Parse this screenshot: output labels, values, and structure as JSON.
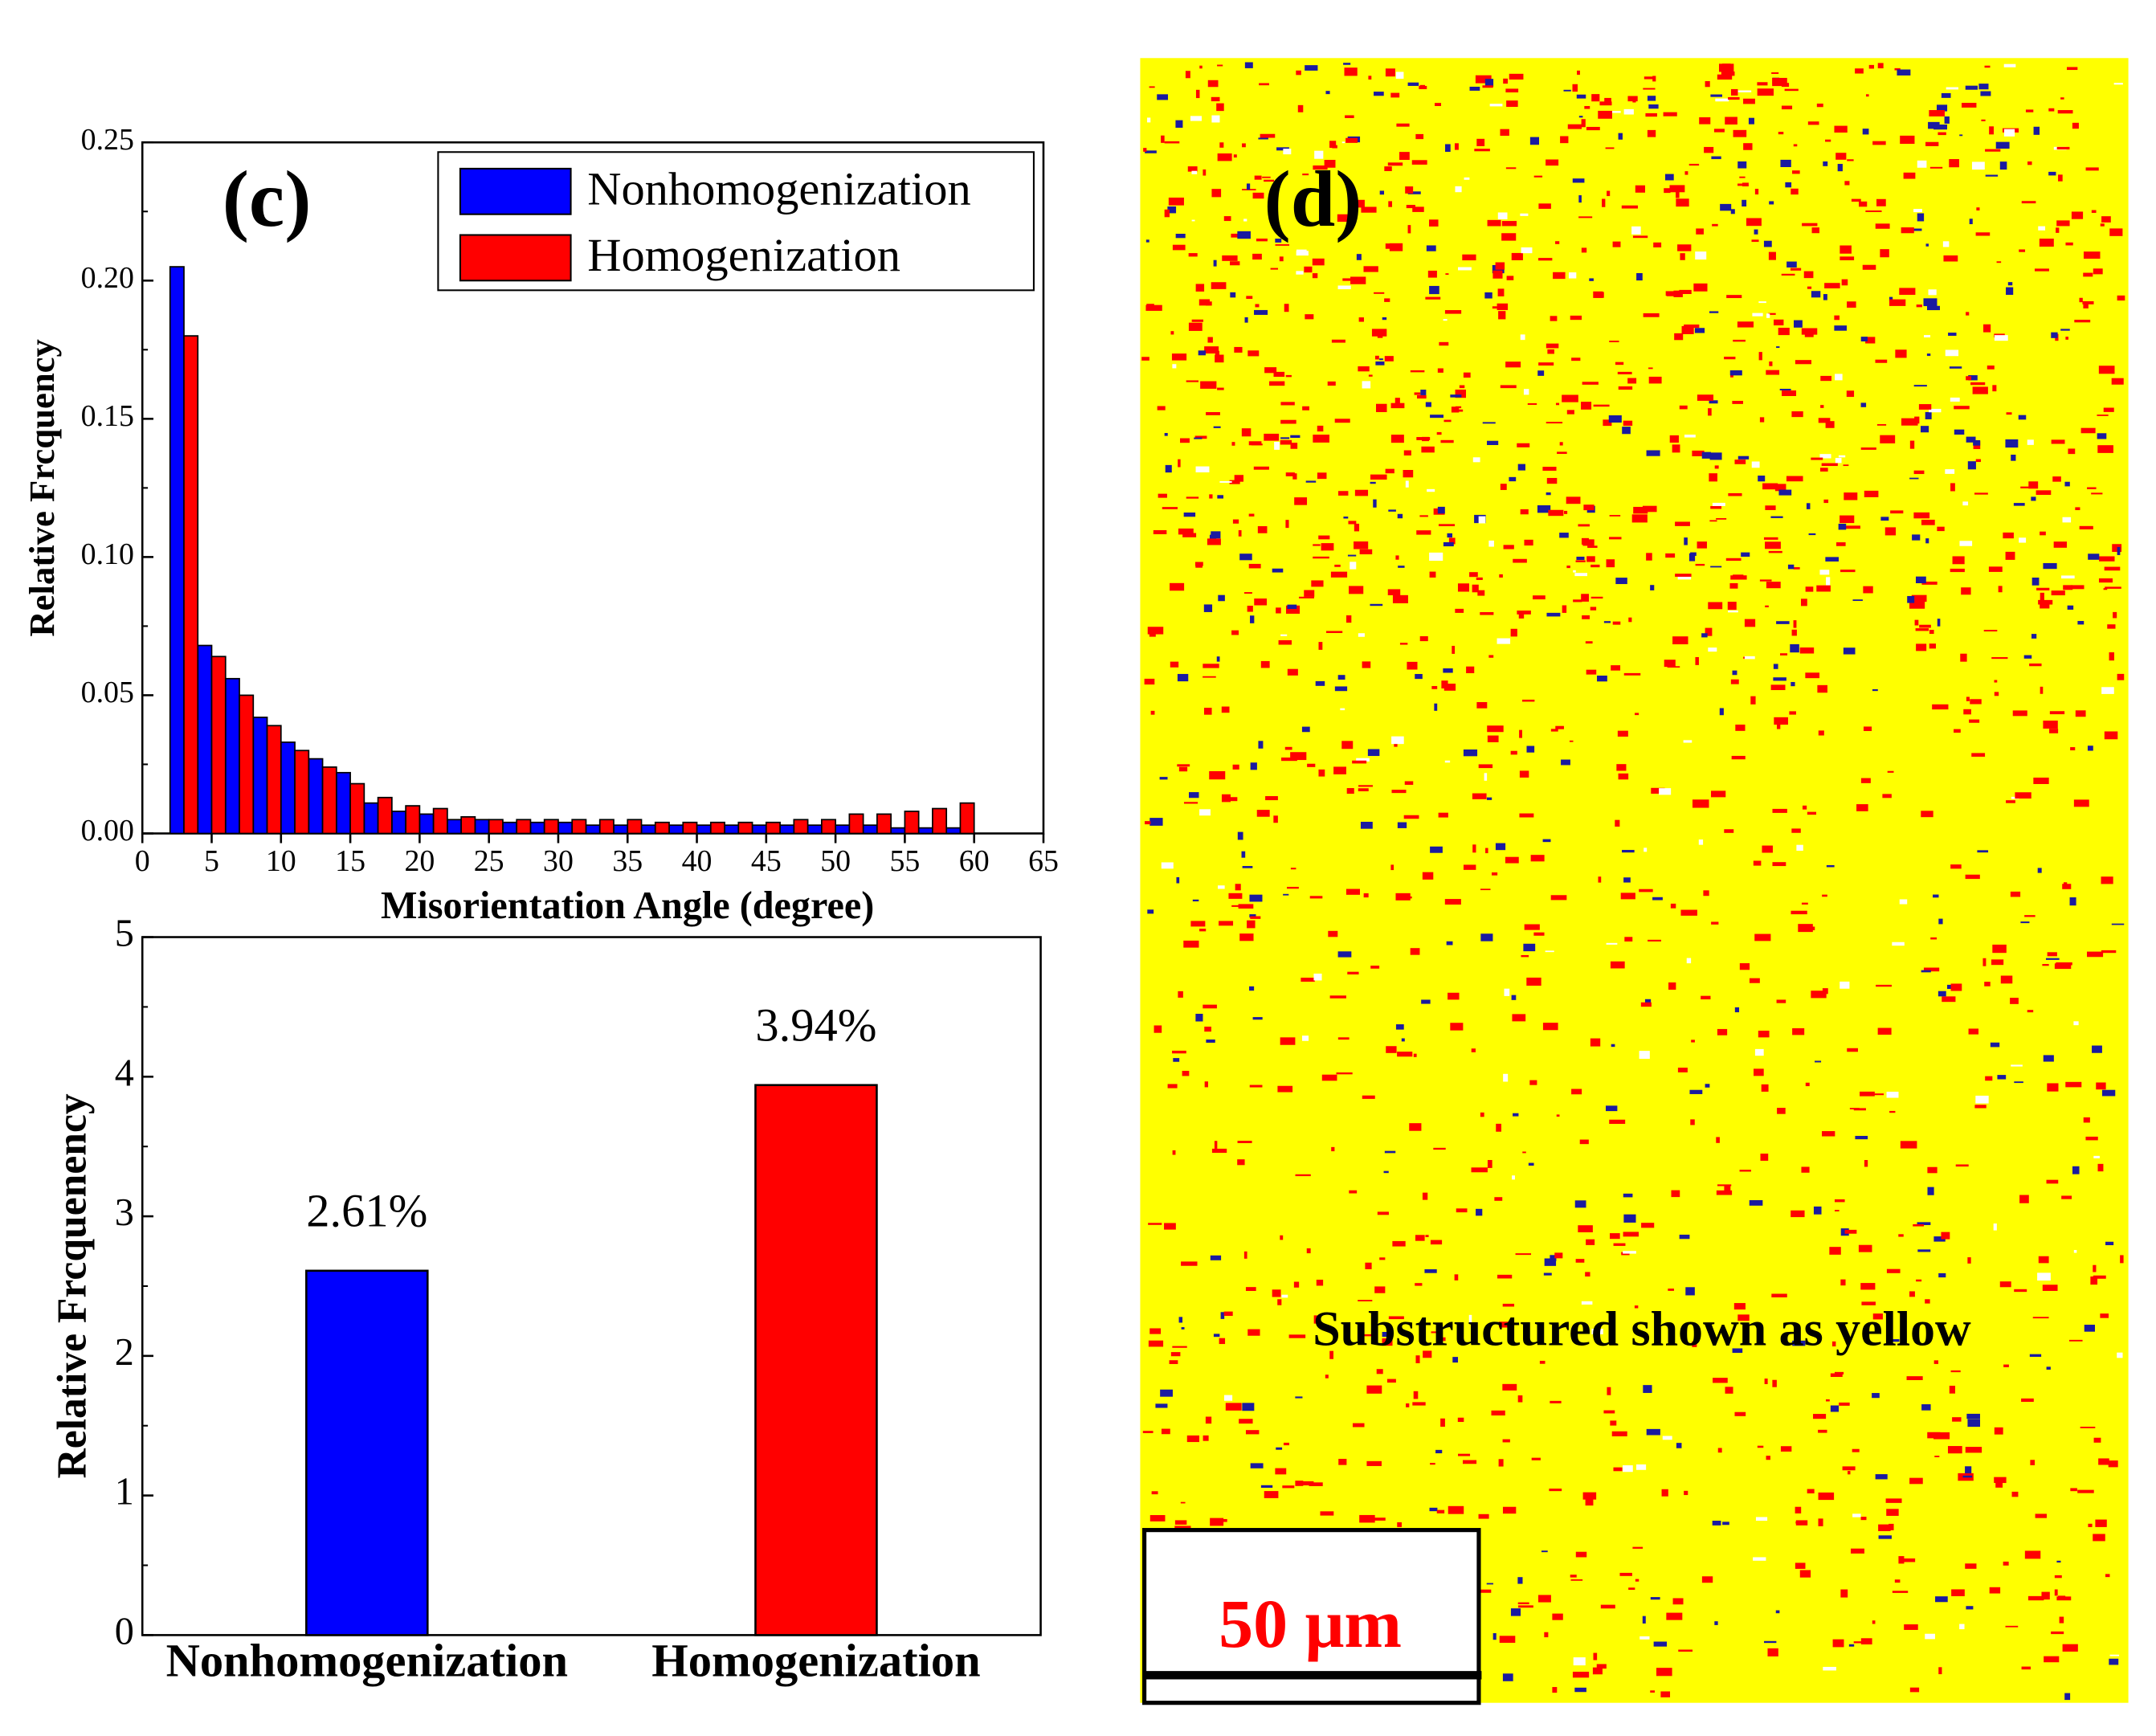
{
  "chart_data": [
    {
      "type": "bar",
      "annotation": "(c)",
      "xlabel": "Misorientation Angle (degree)",
      "ylabel": "Relative Frcquency",
      "x": [
        3,
        5,
        7,
        9,
        11,
        13,
        15,
        17,
        19,
        21,
        23,
        25,
        27,
        29,
        31,
        33,
        35,
        37,
        39,
        41,
        43,
        45,
        47,
        49,
        51,
        53,
        55,
        57,
        59
      ],
      "series": [
        {
          "name": "Nonhomogenization",
          "color": "#0000ff",
          "values": [
            0.205,
            0.068,
            0.056,
            0.042,
            0.033,
            0.027,
            0.022,
            0.011,
            0.008,
            0.007,
            0.005,
            0.005,
            0.004,
            0.004,
            0.004,
            0.003,
            0.003,
            0.003,
            0.003,
            0.003,
            0.003,
            0.003,
            0.003,
            0.003,
            0.003,
            0.003,
            0.002,
            0.002,
            0.002
          ]
        },
        {
          "name": "Homogenization",
          "color": "#ff0000",
          "values": [
            0.18,
            0.064,
            0.05,
            0.039,
            0.03,
            0.024,
            0.018,
            0.013,
            0.01,
            0.009,
            0.006,
            0.005,
            0.005,
            0.005,
            0.005,
            0.005,
            0.005,
            0.004,
            0.004,
            0.004,
            0.004,
            0.004,
            0.005,
            0.005,
            0.007,
            0.007,
            0.008,
            0.009,
            0.011
          ]
        }
      ],
      "xlim": [
        0,
        65
      ],
      "xticks": [
        0,
        5,
        10,
        15,
        20,
        25,
        30,
        35,
        40,
        45,
        50,
        55,
        60,
        65
      ],
      "ylim": [
        0,
        0.25
      ],
      "yticks": [
        {
          "value": 0,
          "label": "0.00"
        },
        {
          "value": 0.05,
          "label": "0.05"
        },
        {
          "value": 0.1,
          "label": "0.10"
        },
        {
          "value": 0.15,
          "label": "0.15"
        },
        {
          "value": 0.2,
          "label": "0.20"
        },
        {
          "value": 0.25,
          "label": "0.25"
        }
      ],
      "legend": "upper right"
    },
    {
      "type": "category-bar",
      "ylabel": "Relative Frcquenency",
      "categories": [
        "Nonhomogenization",
        "Homogenization"
      ],
      "values": [
        2.61,
        3.94
      ],
      "value_labels": [
        "2.61%",
        "3.94%"
      ],
      "colors": [
        "#0000ff",
        "#ff0000"
      ],
      "ylim": [
        0,
        5
      ],
      "yticks": [
        0,
        1,
        2,
        3,
        4,
        5
      ]
    }
  ],
  "panel_d": {
    "label": "(d)",
    "caption": "Substructured shown as yellow",
    "scale_bar": "50 μm"
  }
}
